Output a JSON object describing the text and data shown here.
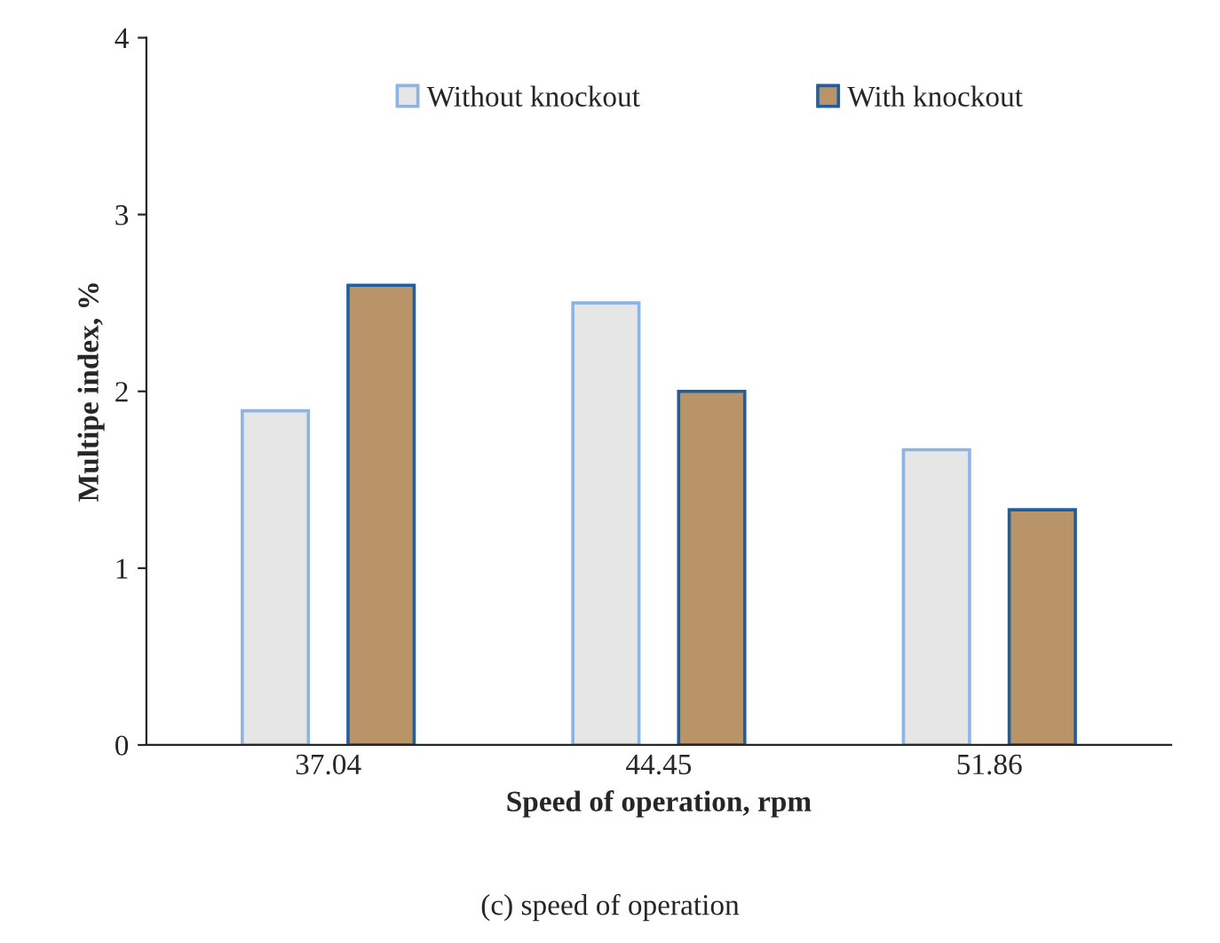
{
  "chart_data": {
    "type": "bar",
    "xlabel": "Speed of operation, rpm",
    "ylabel": "Multipe index, %",
    "categories": [
      "37.04",
      "44.45",
      "51.86"
    ],
    "series": [
      {
        "name": "Without knockout",
        "color": "#e6e6e6",
        "values": [
          1.89,
          2.5,
          1.67
        ]
      },
      {
        "name": "With knockout",
        "color": "#b89468",
        "values": [
          2.6,
          2.0,
          1.33
        ]
      }
    ],
    "ylim": [
      0,
      4
    ],
    "yticks": [
      0,
      1,
      2,
      3,
      4
    ],
    "grid": false,
    "legend": "top",
    "annotations": [
      "(c) speed of operation"
    ]
  }
}
